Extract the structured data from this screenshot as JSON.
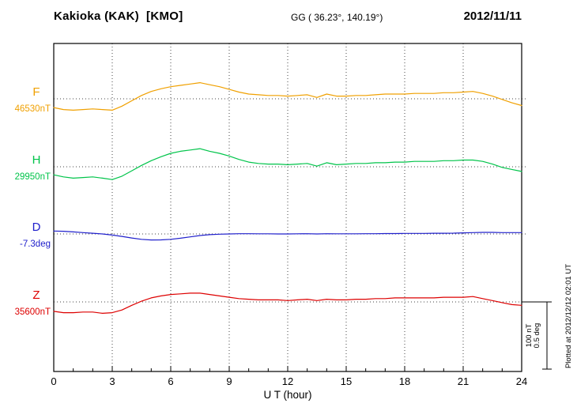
{
  "header": {
    "title": "Kakioka (KAK)  [KMO]",
    "gg": "GG ( 36.23°, 140.19°)",
    "date": "2012/11/11"
  },
  "annotations": {
    "plotted_at": "Plotted at 2012/12/12 02:01 UT"
  },
  "chart_data": {
    "type": "line",
    "title": "Kakioka (KAK) [KMO] magnetogram 2012/11/11",
    "xlabel": "U T (hour)",
    "ylabel": "",
    "xlim": [
      0,
      24
    ],
    "x_ticks": [
      0,
      3,
      6,
      9,
      12,
      15,
      18,
      21,
      24
    ],
    "grid_hours": [
      3,
      6,
      9,
      12,
      15,
      18,
      21
    ],
    "grid": true,
    "x": [
      0,
      0.5,
      1,
      1.5,
      2,
      2.5,
      3,
      3.5,
      4,
      4.5,
      5,
      5.5,
      6,
      6.5,
      7,
      7.5,
      8,
      8.5,
      9,
      9.5,
      10,
      10.5,
      11,
      11.5,
      12,
      12.5,
      13,
      13.5,
      14,
      14.5,
      15,
      15.5,
      16,
      16.5,
      17,
      17.5,
      18,
      18.5,
      19,
      19.5,
      20,
      20.5,
      21,
      21.5,
      22,
      22.5,
      23,
      23.5,
      24
    ],
    "series": [
      {
        "name": "F",
        "value_label": "46530nT",
        "baseline_value": 46530,
        "unit": "nT",
        "color": "#f0a000",
        "scale_value": 100,
        "offsets": [
          -13,
          -16,
          -17,
          -16,
          -15,
          -16,
          -17,
          -11,
          -3,
          5,
          11,
          15,
          18,
          20,
          22,
          24,
          21,
          18,
          14,
          10,
          7,
          6,
          5,
          5,
          4,
          5,
          6,
          2,
          7,
          4,
          4,
          5,
          5,
          6,
          7,
          7,
          7,
          8,
          8,
          8,
          9,
          9,
          10,
          11,
          8,
          4,
          -1,
          -6,
          -10
        ]
      },
      {
        "name": "H",
        "value_label": "29950nT",
        "baseline_value": 29950,
        "unit": "nT",
        "color": "#00c44a",
        "scale_value": 100,
        "offsets": [
          -12,
          -15,
          -17,
          -16,
          -15,
          -17,
          -19,
          -14,
          -6,
          2,
          9,
          15,
          20,
          23,
          25,
          27,
          23,
          20,
          16,
          11,
          7,
          5,
          4,
          4,
          3,
          4,
          5,
          1,
          6,
          3,
          4,
          5,
          5,
          6,
          6,
          7,
          7,
          8,
          8,
          8,
          9,
          9,
          10,
          10,
          8,
          4,
          -1,
          -4,
          -7
        ]
      },
      {
        "name": "D",
        "value_label": "-7.3deg",
        "baseline_value": -7.3,
        "unit": "deg",
        "color": "#2020cc",
        "scale_value": 0.5,
        "offsets": [
          0.022,
          0.02,
          0.015,
          0.01,
          0.005,
          0,
          -0.008,
          -0.018,
          -0.03,
          -0.04,
          -0.045,
          -0.044,
          -0.04,
          -0.032,
          -0.022,
          -0.012,
          -0.005,
          -0.002,
          0,
          0.002,
          0.002,
          0.001,
          0.001,
          0,
          0,
          0.001,
          0.002,
          0,
          0.002,
          0.001,
          0.001,
          0.001,
          0.002,
          0.002,
          0.003,
          0.003,
          0.004,
          0.004,
          0.004,
          0.005,
          0.005,
          0.006,
          0.008,
          0.01,
          0.012,
          0.012,
          0.01,
          0.01,
          0.01
        ]
      },
      {
        "name": "Z",
        "value_label": "35600nT",
        "baseline_value": 35600,
        "unit": "nT",
        "color": "#dd0000",
        "scale_value": 100,
        "offsets": [
          -14,
          -16,
          -16,
          -15,
          -15,
          -17,
          -16,
          -12,
          -5,
          1,
          6,
          9,
          11,
          12,
          13,
          13,
          11,
          9,
          7,
          5,
          4,
          3,
          3,
          3,
          2,
          3,
          4,
          2,
          4,
          3,
          3,
          4,
          4,
          5,
          5,
          6,
          6,
          6,
          6,
          6,
          7,
          7,
          7,
          8,
          5,
          2,
          -1,
          -4,
          -5
        ]
      }
    ],
    "scale_bar": {
      "labels": [
        "100 nT",
        "0.5 deg"
      ]
    },
    "legend_position": "left-of-traces"
  }
}
